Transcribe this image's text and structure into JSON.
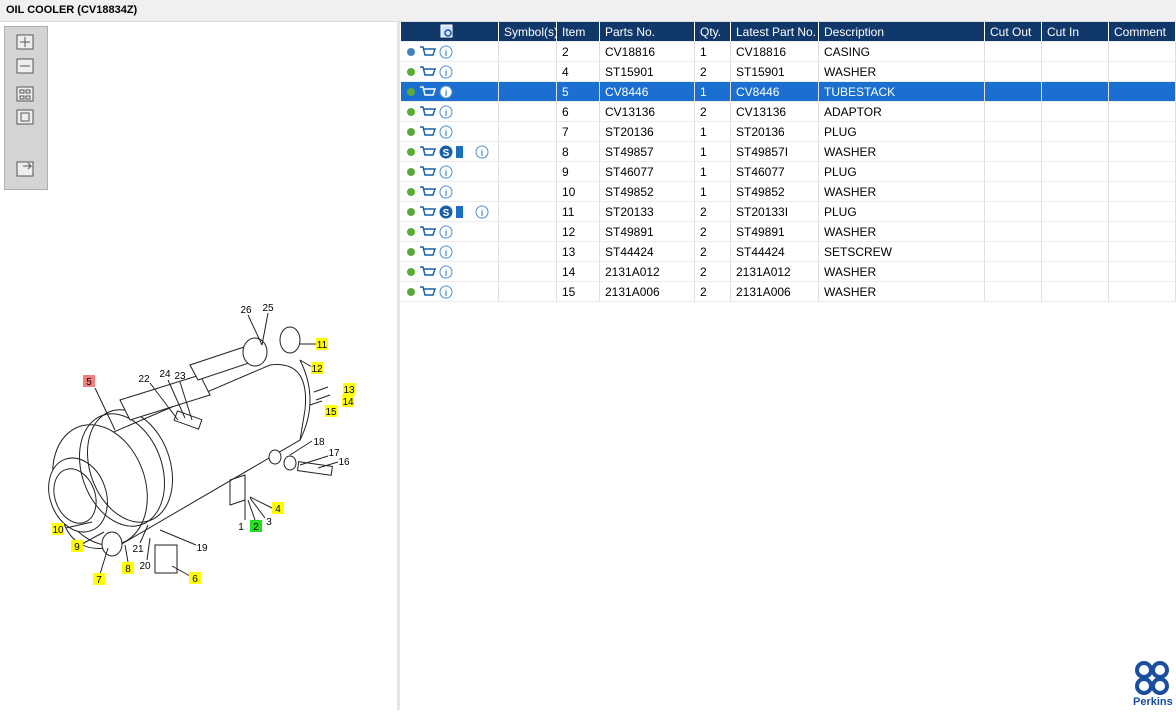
{
  "header": {
    "title": "OIL COOLER (CV18834Z)"
  },
  "diagram": {
    "callouts": [
      {
        "label": "26"
      },
      {
        "label": "25"
      },
      {
        "label": "11",
        "highlight": "#ffff00"
      },
      {
        "label": "12",
        "highlight": "#ffff00"
      },
      {
        "label": "22"
      },
      {
        "label": "24"
      },
      {
        "label": "23"
      },
      {
        "label": "5",
        "highlight": "#f08080"
      },
      {
        "label": "13",
        "highlight": "#ffff00"
      },
      {
        "label": "14",
        "highlight": "#ffff00"
      },
      {
        "label": "15",
        "highlight": "#ffff00"
      },
      {
        "label": "18"
      },
      {
        "label": "17"
      },
      {
        "label": "16"
      },
      {
        "label": "4",
        "highlight": "#ffff00"
      },
      {
        "label": "3"
      },
      {
        "label": "1"
      },
      {
        "label": "2",
        "highlight": "#22dd22"
      },
      {
        "label": "10",
        "highlight": "#ffff00"
      },
      {
        "label": "9",
        "highlight": "#ffff00"
      },
      {
        "label": "19"
      },
      {
        "label": "21"
      },
      {
        "label": "20"
      },
      {
        "label": "8",
        "highlight": "#ffff00"
      },
      {
        "label": "6",
        "highlight": "#ffff00"
      },
      {
        "label": "7",
        "highlight": "#ffff00"
      }
    ]
  },
  "table": {
    "headers": [
      "Symbol(s)",
      "Item",
      "Parts No.",
      "Qty.",
      "Latest Part No.",
      "Description",
      "Cut Out",
      "Cut In",
      "Comment"
    ],
    "rows": [
      {
        "item": "2",
        "parts_no": "CV18816",
        "qty": "1",
        "latest": "CV18816",
        "description": "CASING"
      },
      {
        "item": "4",
        "parts_no": "ST15901",
        "qty": "2",
        "latest": "ST15901",
        "description": "WASHER"
      },
      {
        "item": "5",
        "parts_no": "CV8446",
        "qty": "1",
        "latest": "CV8446",
        "description": "TUBESTACK",
        "selected": true
      },
      {
        "item": "6",
        "parts_no": "CV13136",
        "qty": "2",
        "latest": "CV13136",
        "description": "ADAPTOR"
      },
      {
        "item": "7",
        "parts_no": "ST20136",
        "qty": "1",
        "latest": "ST20136",
        "description": "PLUG"
      },
      {
        "item": "8",
        "parts_no": "ST49857",
        "qty": "1",
        "latest": "ST49857I",
        "description": "WASHER",
        "badge": "S"
      },
      {
        "item": "9",
        "parts_no": "ST46077",
        "qty": "1",
        "latest": "ST46077",
        "description": "PLUG"
      },
      {
        "item": "10",
        "parts_no": "ST49852",
        "qty": "1",
        "latest": "ST49852",
        "description": "WASHER"
      },
      {
        "item": "11",
        "parts_no": "ST20133",
        "qty": "2",
        "latest": "ST20133I",
        "description": "PLUG",
        "badge": "S"
      },
      {
        "item": "12",
        "parts_no": "ST49891",
        "qty": "2",
        "latest": "ST49891",
        "description": "WASHER"
      },
      {
        "item": "13",
        "parts_no": "ST44424",
        "qty": "2",
        "latest": "ST44424",
        "description": "SETSCREW"
      },
      {
        "item": "14",
        "parts_no": "2131A012",
        "qty": "2",
        "latest": "2131A012",
        "description": "WASHER"
      },
      {
        "item": "15",
        "parts_no": "2131A006",
        "qty": "2",
        "latest": "2131A006",
        "description": "WASHER"
      }
    ]
  },
  "logo": {
    "text": "Perkins"
  }
}
